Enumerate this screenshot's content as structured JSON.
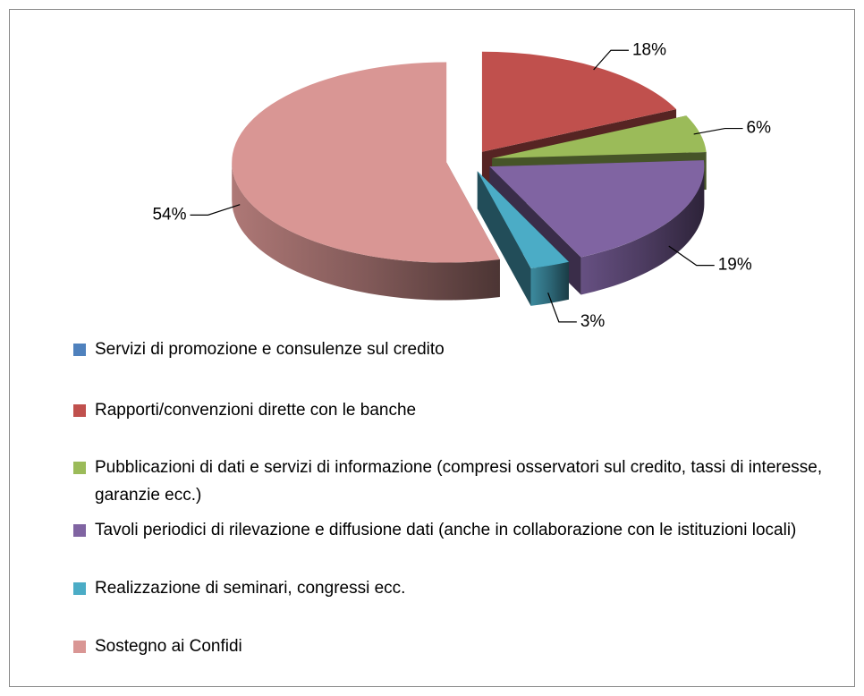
{
  "chart_data": {
    "type": "pie3d",
    "categories": [
      "Servizi di promozione e consulenze sul credito",
      "Rapporti/convenzioni dirette con le banche",
      "Pubblicazioni di dati e servizi di informazione (compresi osservatori sul credito, tassi di interesse, garanzie ecc.)",
      "Tavoli periodici di rilevazione e diffusione dati (anche in collaborazione con le istituzioni locali)",
      "Realizzazione di seminari, congressi ecc.",
      "Sostegno ai Confidi"
    ],
    "values": [
      0,
      18,
      6,
      19,
      3,
      54
    ],
    "value_labels": [
      null,
      "18%",
      "6%",
      "19%",
      "3%",
      "54%"
    ],
    "colors": [
      "#4f81bd",
      "#c0504d",
      "#9bbb59",
      "#8064a2",
      "#4bacc6",
      "#d99694"
    ],
    "legend": "bottom"
  }
}
